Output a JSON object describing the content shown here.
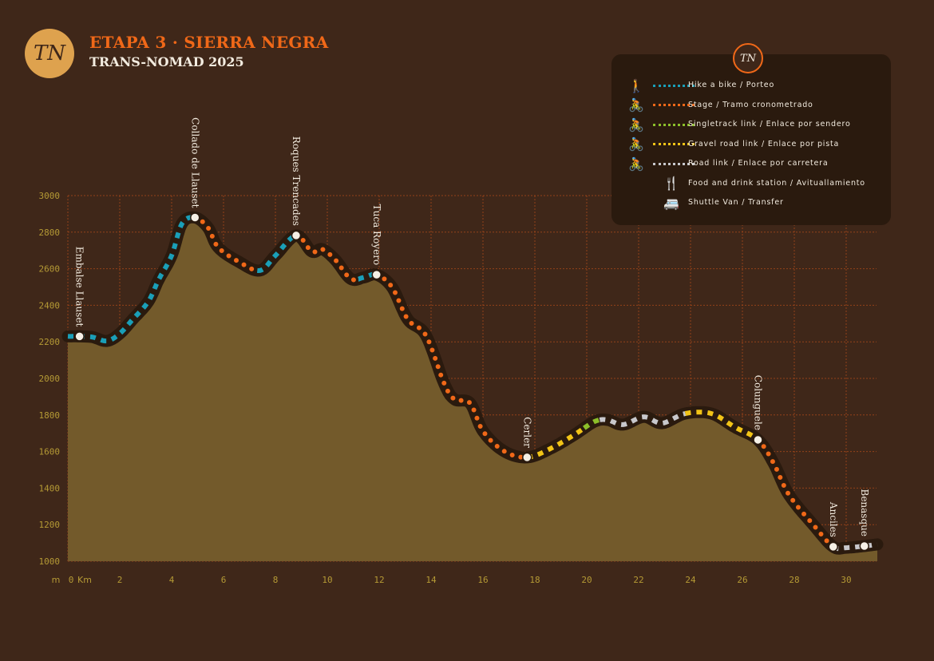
{
  "header": {
    "logo_text": "TN",
    "title": "ETAPA 3 · SIERRA NEGRA",
    "subtitle": "TRANS-NOMAD 2025"
  },
  "legend": {
    "logo_text": "TN",
    "items": [
      {
        "type": "hike",
        "label": "Hike a bike / Porteo",
        "color": "#1a9fb8",
        "icon": "hiker-carrying-bike-icon"
      },
      {
        "type": "stage",
        "label": "Stage / Tramo cronometrado",
        "color": "#f06818",
        "icon": "downhill-rider-icon"
      },
      {
        "type": "singletrack",
        "label": "Singletrack link / Enlace por sendero",
        "color": "#8cbf2a",
        "icon": "cyclist-green-icon"
      },
      {
        "type": "gravel",
        "label": "Gravel road link / Enlace por pista",
        "color": "#f2c417",
        "icon": "cyclist-yellow-icon"
      },
      {
        "type": "road",
        "label": "Road link / Enlace por carretera",
        "color": "#c8c8cc",
        "icon": "cyclist-grey-icon"
      },
      {
        "type": "food",
        "label": "Food and drink station / Avituallamiento",
        "color": "#e8a040",
        "icon": "food-drink-icon"
      },
      {
        "type": "shuttle",
        "label": "Shuttle Van / Transfer",
        "color": "#e8601a",
        "icon": "shuttle-van-icon"
      }
    ]
  },
  "chart_data": {
    "type": "area",
    "xlabel": "Km",
    "ylabel": "m",
    "xlim": [
      0,
      31.2
    ],
    "ylim": [
      1000,
      3000
    ],
    "grid": true,
    "x_ticks": [
      0,
      2,
      4,
      6,
      8,
      10,
      12,
      14,
      16,
      18,
      20,
      22,
      24,
      26,
      28,
      30
    ],
    "x_tick_labels": [
      "0",
      "2",
      "4",
      "6",
      "8",
      "10",
      "12",
      "14",
      "16",
      "18",
      "20",
      "22",
      "24",
      "26",
      "28",
      "30"
    ],
    "y_ticks": [
      1000,
      1200,
      1400,
      1600,
      1800,
      2000,
      2200,
      2400,
      2600,
      2800,
      3000
    ],
    "y_tick_labels": [
      "1000",
      "1200",
      "1400",
      "1600",
      "1800",
      "2000",
      "2200",
      "2400",
      "2600",
      "2800",
      "3000"
    ],
    "profile": [
      [
        0,
        2230
      ],
      [
        0.9,
        2227
      ],
      [
        1.5,
        2205
      ],
      [
        2,
        2245
      ],
      [
        2.5,
        2323
      ],
      [
        3.1,
        2420
      ],
      [
        3.5,
        2540
      ],
      [
        4,
        2672
      ],
      [
        4.4,
        2847
      ],
      [
        4.9,
        2880
      ],
      [
        5.4,
        2825
      ],
      [
        5.8,
        2716
      ],
      [
        6.6,
        2637
      ],
      [
        7.4,
        2590
      ],
      [
        8,
        2672
      ],
      [
        8.8,
        2782
      ],
      [
        9.4,
        2694
      ],
      [
        9.8,
        2707
      ],
      [
        10.3,
        2650
      ],
      [
        10.9,
        2545
      ],
      [
        11.4,
        2552
      ],
      [
        11.9,
        2567
      ],
      [
        12.5,
        2498
      ],
      [
        13.1,
        2323
      ],
      [
        13.8,
        2236
      ],
      [
        14.5,
        1974
      ],
      [
        14.9,
        1886
      ],
      [
        15.5,
        1865
      ],
      [
        16,
        1712
      ],
      [
        16.8,
        1603
      ],
      [
        17.7,
        1568
      ],
      [
        18.6,
        1616
      ],
      [
        19.5,
        1690
      ],
      [
        20.3,
        1764
      ],
      [
        20.8,
        1773
      ],
      [
        21.4,
        1747
      ],
      [
        22.2,
        1790
      ],
      [
        22.9,
        1755
      ],
      [
        23.8,
        1808
      ],
      [
        24.8,
        1808
      ],
      [
        25.7,
        1734
      ],
      [
        26.6,
        1664
      ],
      [
        27.2,
        1537
      ],
      [
        27.8,
        1362
      ],
      [
        28.8,
        1188
      ],
      [
        29.5,
        1079
      ],
      [
        30,
        1074
      ],
      [
        30.7,
        1083
      ],
      [
        31.2,
        1092
      ]
    ],
    "segments": [
      {
        "type": "hike",
        "from": 0,
        "to": 4.9
      },
      {
        "type": "stage",
        "from": 4.9,
        "to": 7.3
      },
      {
        "type": "hike",
        "from": 7.3,
        "to": 8.8
      },
      {
        "type": "stage",
        "from": 8.8,
        "to": 11.2
      },
      {
        "type": "hike",
        "from": 11.2,
        "to": 11.9
      },
      {
        "type": "stage",
        "from": 11.9,
        "to": 17.7
      },
      {
        "type": "gravel",
        "from": 17.7,
        "to": 19.9
      },
      {
        "type": "singletrack",
        "from": 19.9,
        "to": 20.5
      },
      {
        "type": "road",
        "from": 20.5,
        "to": 23.8
      },
      {
        "type": "gravel",
        "from": 23.8,
        "to": 26.6
      },
      {
        "type": "stage",
        "from": 26.6,
        "to": 29.5
      },
      {
        "type": "road",
        "from": 29.5,
        "to": 31.2
      }
    ],
    "waypoints": [
      {
        "name": "Embalse Llauset",
        "km": 0.45
      },
      {
        "name": "Collado de Llauset",
        "km": 4.9
      },
      {
        "name": "Roques Trencades",
        "km": 8.8
      },
      {
        "name": "Tuca Royero",
        "km": 11.9
      },
      {
        "name": "Cerler",
        "km": 17.7
      },
      {
        "name": "Colunguele",
        "km": 26.6
      },
      {
        "name": "Anciles",
        "km": 29.5
      },
      {
        "name": "Benasque",
        "km": 30.7
      }
    ]
  }
}
